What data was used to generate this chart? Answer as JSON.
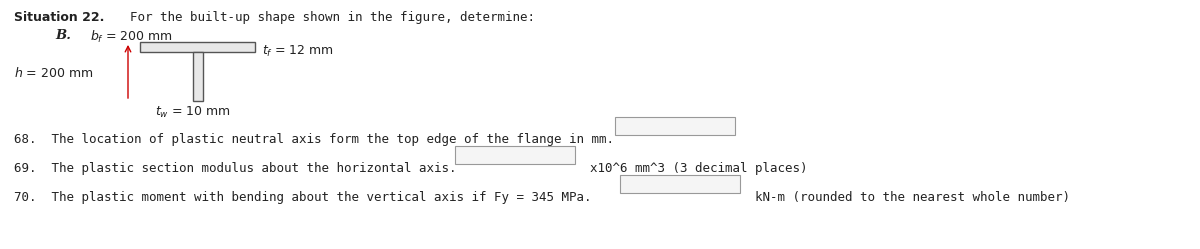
{
  "title_bold": "Situation 22.",
  "title_rest": "  For the built-up shape shown in the figure, determine:",
  "label_B": "B.",
  "label_bf": "bⁱ = 200 mm",
  "label_tf": "tⁱ = 12 mm",
  "label_h": "h = 200 mm",
  "label_tw": "tᵤ = 10 mm",
  "q68": "68.  The location of plastic neutral axis form the top edge of the flange in mm.",
  "q69": "69.  The plastic section modulus about the horizontal axis.",
  "q69_unit": "x10^6 mm^3 (3 decimal places)",
  "q70": "70.  The plastic moment with bending about the vertical axis if Fy = 345 MPa.",
  "q70_unit": "kN-m (rounded to the nearest whole number)",
  "bg_color": "#ffffff",
  "text_color": "#222222",
  "fig_width": 12.0,
  "fig_height": 2.49,
  "dpi": 100
}
